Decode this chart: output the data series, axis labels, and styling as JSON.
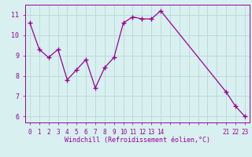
{
  "xlabel": "Windchill (Refroidissement éolien,°C)",
  "line_color": "#990099",
  "bg_color": "#d8f0f0",
  "grid_color": "#b8d8d8",
  "x_data": [
    0,
    1,
    2,
    3,
    4,
    5,
    6,
    7,
    8,
    9,
    10,
    11,
    12,
    13,
    14,
    21,
    22,
    23
  ],
  "y_data": [
    10.6,
    9.3,
    8.9,
    9.3,
    7.8,
    8.3,
    8.8,
    7.4,
    8.4,
    8.9,
    10.6,
    10.9,
    10.8,
    10.8,
    11.2,
    7.2,
    6.5,
    6.0
  ],
  "xlim": [
    -0.5,
    23.5
  ],
  "ylim": [
    5.7,
    11.5
  ],
  "xtick_positions": [
    0,
    1,
    2,
    3,
    4,
    5,
    6,
    7,
    8,
    9,
    10,
    11,
    12,
    13,
    14,
    21,
    22,
    23
  ],
  "xtick_labels": [
    "0",
    "1",
    "2",
    "3",
    "4",
    "5",
    "6",
    "7",
    "8",
    "9",
    "10",
    "11",
    "12",
    "13",
    "14",
    "21",
    "22",
    "23"
  ],
  "yticks": [
    6,
    7,
    8,
    9,
    10,
    11
  ],
  "marker_size": 4,
  "linewidth": 0.9,
  "tick_fontsize": 5.5,
  "label_fontsize": 6
}
